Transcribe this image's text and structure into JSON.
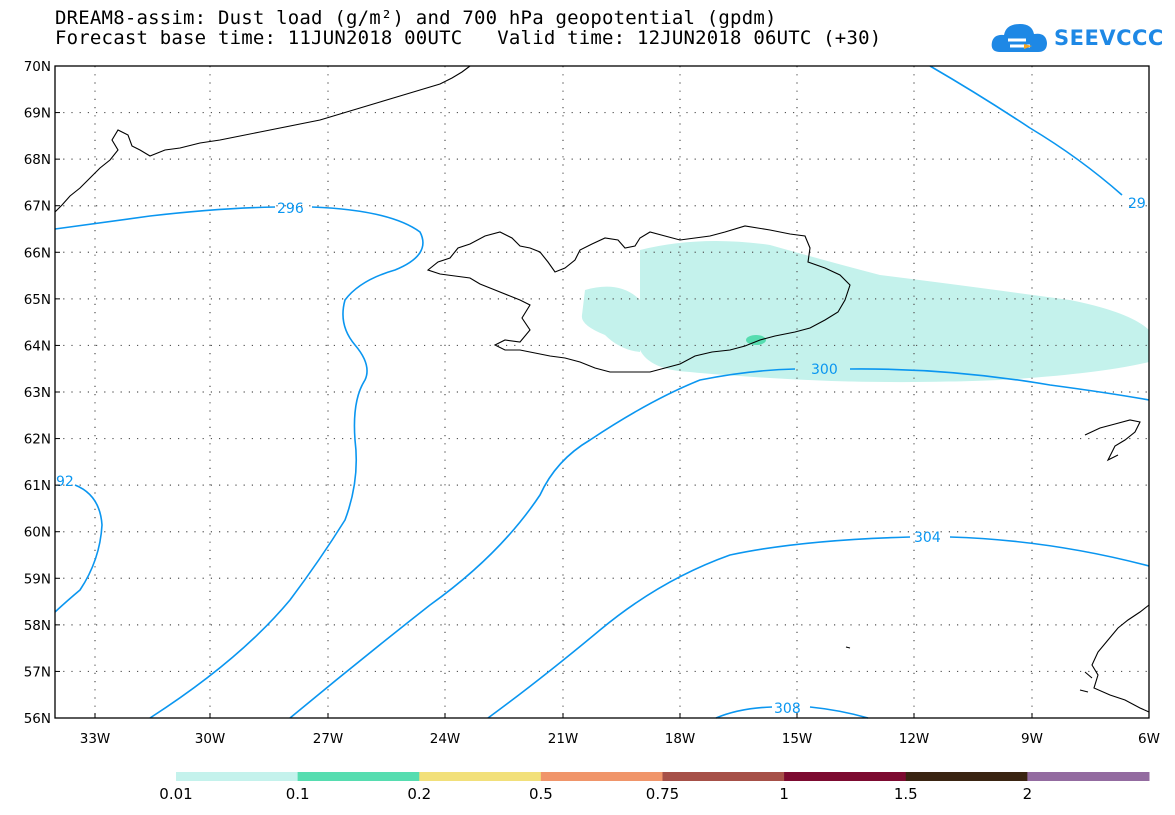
{
  "title_line1": "DREAM8-assim: Dust load (g/m²) and 700 hPa geopotential (gpdm)",
  "title_line2": "Forecast base time: 11JUN2018 00UTC   Valid time: 12JUN2018 06UTC (+30)",
  "logo_text": "SEEVCCC",
  "lat_labels": [
    "70N",
    "69N",
    "68N",
    "67N",
    "66N",
    "65N",
    "64N",
    "63N",
    "62N",
    "61N",
    "60N",
    "59N",
    "58N",
    "57N",
    "56N"
  ],
  "lon_labels": [
    "33W",
    "30W",
    "27W",
    "24W",
    "21W",
    "18W",
    "15W",
    "12W",
    "9W",
    "6W"
  ],
  "contour_labels": [
    "296",
    "300",
    "304",
    "308",
    "29",
    "92"
  ],
  "colorbar": {
    "labels": [
      "0.01",
      "0.1",
      "0.2",
      "0.5",
      "0.75",
      "1",
      "1.5",
      "2"
    ],
    "colors": [
      "#c4f2ec",
      "#56ddb0",
      "#f2e07a",
      "#f0956a",
      "#a65048",
      "#7c0a30",
      "#3a2412",
      "#936ba0"
    ]
  },
  "dust_color": "#c4f2ec",
  "contour_color": "#0a96f0"
}
